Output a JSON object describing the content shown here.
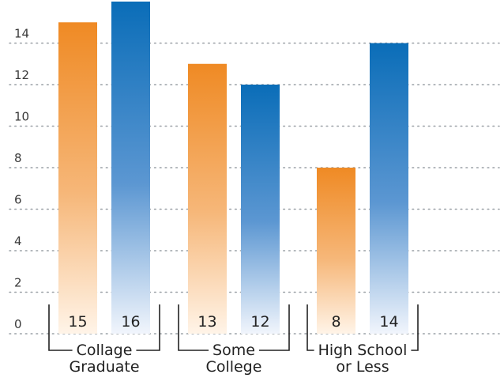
{
  "chart_data": {
    "type": "bar",
    "title": "",
    "xlabel": "",
    "ylabel": "",
    "ylim": [
      0,
      16
    ],
    "yticks": [
      "0",
      "2",
      "4",
      "6",
      "8",
      "10",
      "12",
      "14"
    ],
    "grid": true,
    "legend": "none",
    "categories": [
      {
        "line1": "Collage",
        "line2": "Graduate"
      },
      {
        "line1": "Some",
        "line2": "College"
      },
      {
        "line1": "High School",
        "line2": "or Less"
      }
    ],
    "series": [
      {
        "values": [
          15,
          13,
          8
        ],
        "color": "#ef8a24"
      },
      {
        "values": [
          16,
          12,
          14
        ],
        "color": "#0a6db8"
      }
    ]
  }
}
